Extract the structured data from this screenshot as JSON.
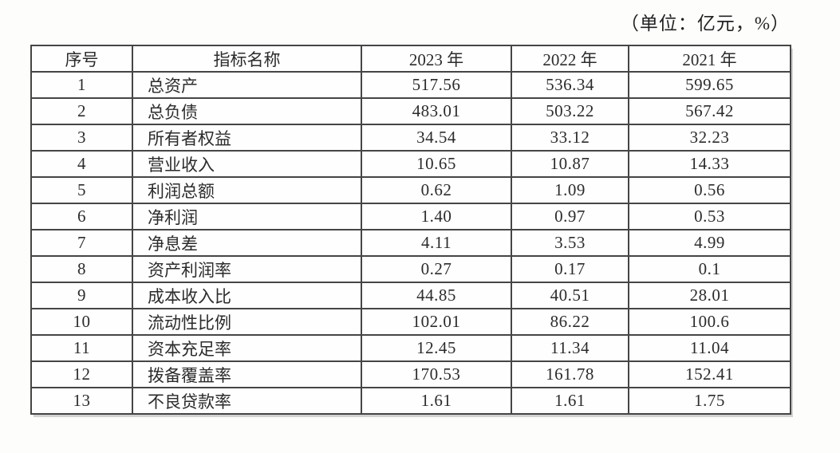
{
  "unit_note": "（单位：亿元，%）",
  "table": {
    "columns": [
      "序号",
      "指标名称",
      "2023 年",
      "2022 年",
      "2021 年"
    ],
    "rows": [
      {
        "no": "1",
        "indicator": "总资产",
        "y2023": "517.56",
        "y2022": "536.34",
        "y2021": "599.65"
      },
      {
        "no": "2",
        "indicator": "总负债",
        "y2023": "483.01",
        "y2022": "503.22",
        "y2021": "567.42"
      },
      {
        "no": "3",
        "indicator": "所有者权益",
        "y2023": "34.54",
        "y2022": "33.12",
        "y2021": "32.23"
      },
      {
        "no": "4",
        "indicator": "营业收入",
        "y2023": "10.65",
        "y2022": "10.87",
        "y2021": "14.33"
      },
      {
        "no": "5",
        "indicator": "利润总额",
        "y2023": "0.62",
        "y2022": "1.09",
        "y2021": "0.56"
      },
      {
        "no": "6",
        "indicator": "净利润",
        "y2023": "1.40",
        "y2022": "0.97",
        "y2021": "0.53"
      },
      {
        "no": "7",
        "indicator": "净息差",
        "y2023": "4.11",
        "y2022": "3.53",
        "y2021": "4.99"
      },
      {
        "no": "8",
        "indicator": "资产利润率",
        "y2023": "0.27",
        "y2022": "0.17",
        "y2021": "0.1"
      },
      {
        "no": "9",
        "indicator": "成本收入比",
        "y2023": "44.85",
        "y2022": "40.51",
        "y2021": "28.01"
      },
      {
        "no": "10",
        "indicator": "流动性比例",
        "y2023": "102.01",
        "y2022": "86.22",
        "y2021": "100.6"
      },
      {
        "no": "11",
        "indicator": "资本充足率",
        "y2023": "12.45",
        "y2022": "11.34",
        "y2021": "11.04"
      },
      {
        "no": "12",
        "indicator": "拨备覆盖率",
        "y2023": "170.53",
        "y2022": "161.78",
        "y2021": "152.41"
      },
      {
        "no": "13",
        "indicator": "不良贷款率",
        "y2023": "1.61",
        "y2022": "1.61",
        "y2021": "1.75"
      }
    ]
  }
}
